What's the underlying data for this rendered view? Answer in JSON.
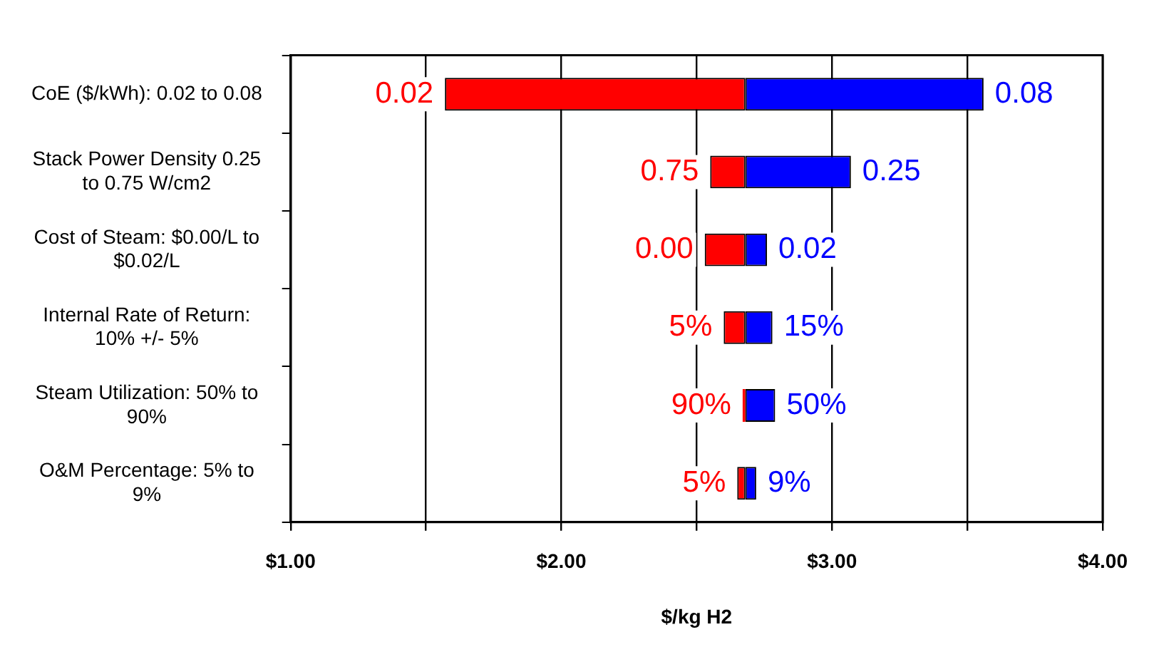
{
  "chart_data": {
    "type": "bar",
    "orientation": "horizontal",
    "xlabel": "$/kg H2",
    "categories": [
      "CoE ($/kWh): 0.02 to 0.08",
      "Stack Power Density 0.25 to 0.75 W/cm2",
      "Cost of Steam: $0.00/L to $0.02/L",
      "Internal Rate of Return: 10% +/- 5%",
      "Steam Utilization: 50% to 90%",
      "O&M Percentage: 5% to 9%"
    ],
    "series": [
      {
        "color": "#ff0000",
        "base": [
          1.57,
          2.55,
          2.53,
          2.6,
          2.67,
          2.65
        ],
        "values": [
          1.11,
          0.13,
          0.15,
          0.08,
          0.01,
          0.03
        ]
      },
      {
        "color": "#0000ff",
        "base": [
          2.68,
          2.68,
          2.68,
          2.68,
          2.68,
          2.68
        ],
        "values": [
          0.88,
          0.39,
          0.08,
          0.1,
          0.11,
          0.04
        ]
      }
    ],
    "annotations": [
      {
        "text": "0.02",
        "x": 1.57,
        "y": "CoE ($/kWh): 0.02 to 0.08"
      },
      {
        "text": "0.08",
        "x": 3.56,
        "y": "CoE ($/kWh): 0.02 to 0.08"
      },
      {
        "text": "0.75",
        "x": 2.55,
        "y": "Stack Power Density 0.25 to 0.75 W/cm2"
      },
      {
        "text": "0.25",
        "x": 3.07,
        "y": "Stack Power Density 0.25 to 0.75 W/cm2"
      },
      {
        "text": "0.00",
        "x": 2.53,
        "y": "Cost of Steam: $0.00/L to $0.02/L"
      },
      {
        "text": "0.02",
        "x": 2.76,
        "y": "Cost of Steam: $0.00/L to $0.02/L"
      },
      {
        "text": "5%",
        "x": 2.6,
        "y": "Internal Rate of Return: 10% +/- 5%"
      },
      {
        "text": "15%",
        "x": 2.78,
        "y": "Internal Rate of Return: 10% +/- 5%"
      },
      {
        "text": "90%",
        "x": 2.67,
        "y": "Steam Utilization: 50% to 90%"
      },
      {
        "text": "50%",
        "x": 2.79,
        "y": "Steam Utilization: 50% to 90%"
      },
      {
        "text": "5%",
        "x": 2.65,
        "y": "O&M Percentage: 5% to 9%"
      },
      {
        "text": "9%",
        "x": 2.72,
        "y": "O&M Percentage: 5% to 9%"
      }
    ],
    "xlim": [
      1,
      4
    ],
    "xticks": [
      {
        "value": 1,
        "label": "$1.00"
      },
      {
        "value": 1.5,
        "label": null
      },
      {
        "value": 2,
        "label": "$2.00"
      },
      {
        "value": 2.5,
        "label": null
      },
      {
        "value": 3,
        "label": "$3.00"
      },
      {
        "value": 3.5,
        "label": null
      },
      {
        "value": 4,
        "label": "$4.00"
      }
    ],
    "grid": "x",
    "legend": false
  }
}
